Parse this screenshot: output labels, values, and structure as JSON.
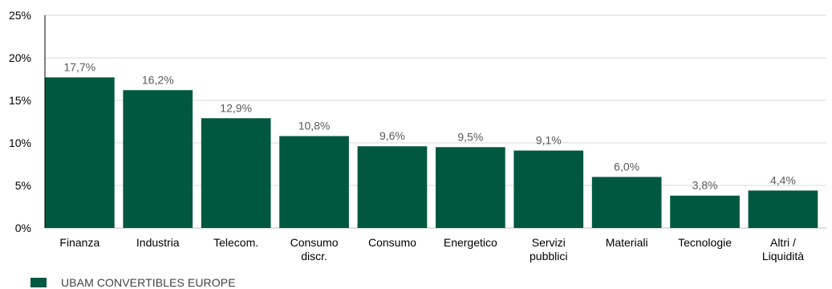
{
  "chart_data": {
    "type": "bar",
    "categories": [
      [
        "Finanza"
      ],
      [
        "Industria"
      ],
      [
        "Telecom."
      ],
      [
        "Consumo",
        "discr."
      ],
      [
        "Consumo"
      ],
      [
        "Energetico"
      ],
      [
        "Servizi",
        "pubblici"
      ],
      [
        "Materiali"
      ],
      [
        "Tecnologie"
      ],
      [
        "Altri /",
        "Liquidità"
      ]
    ],
    "series": [
      {
        "name": "UBAM CONVERTIBLES EUROPE",
        "values": [
          17.7,
          16.2,
          12.9,
          10.8,
          9.6,
          9.5,
          9.1,
          6.0,
          3.8,
          4.4
        ],
        "labels": [
          "17,7%",
          "16,2%",
          "12,9%",
          "10,8%",
          "9,6%",
          "9,5%",
          "9,1%",
          "6,0%",
          "3,8%",
          "4,4%"
        ],
        "color": "#005840"
      }
    ],
    "ylim": [
      0,
      25
    ],
    "yticks": [
      0,
      5,
      10,
      15,
      20,
      25
    ],
    "ytick_labels": [
      "0%",
      "5%",
      "10%",
      "15%",
      "20%",
      "25%"
    ],
    "grid": true,
    "legend": "bottom-left",
    "title": "",
    "xlabel": "",
    "ylabel": ""
  }
}
